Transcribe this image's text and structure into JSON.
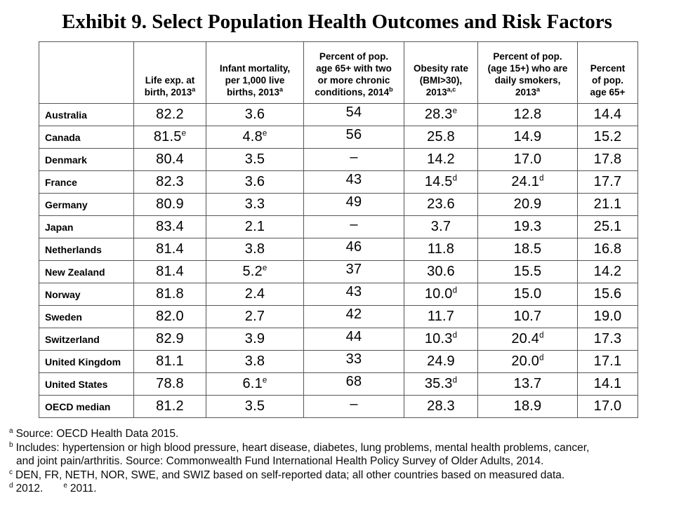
{
  "title": "Exhibit 9. Select Population Health Outcomes and Risk Factors",
  "table": {
    "columns": [
      {
        "lines": [],
        "sup": ""
      },
      {
        "lines": [
          "Life exp. at",
          "birth, 2013"
        ],
        "sup": "a"
      },
      {
        "lines": [
          "Infant mortality,",
          "per 1,000 live",
          "births, 2013"
        ],
        "sup": "a"
      },
      {
        "lines": [
          "Percent of pop.",
          "age 65+ with two",
          "or more chronic",
          "conditions, 2014"
        ],
        "sup": "b"
      },
      {
        "lines": [
          "Obesity rate",
          "(BMI>30),",
          "2013"
        ],
        "sup": "a,c"
      },
      {
        "lines": [
          "Percent of pop.",
          "(age 15+) who are",
          "daily smokers,",
          "2013"
        ],
        "sup": "a"
      },
      {
        "lines": [
          "Percent",
          "of pop.",
          "age 65+"
        ],
        "sup": ""
      }
    ],
    "rows": [
      {
        "country": "Australia",
        "cells": [
          {
            "v": "82.2",
            "sup": ""
          },
          {
            "v": "3.6",
            "sup": ""
          },
          {
            "v": "54",
            "sup": ""
          },
          {
            "v": "28.3",
            "sup": "e"
          },
          {
            "v": "12.8",
            "sup": ""
          },
          {
            "v": "14.4",
            "sup": ""
          }
        ]
      },
      {
        "country": "Canada",
        "cells": [
          {
            "v": "81.5",
            "sup": "e"
          },
          {
            "v": "4.8",
            "sup": "e"
          },
          {
            "v": "56",
            "sup": ""
          },
          {
            "v": "25.8",
            "sup": ""
          },
          {
            "v": "14.9",
            "sup": ""
          },
          {
            "v": "15.2",
            "sup": ""
          }
        ]
      },
      {
        "country": "Denmark",
        "cells": [
          {
            "v": "80.4",
            "sup": ""
          },
          {
            "v": "3.5",
            "sup": ""
          },
          {
            "v": "–",
            "sup": ""
          },
          {
            "v": "14.2",
            "sup": ""
          },
          {
            "v": "17.0",
            "sup": ""
          },
          {
            "v": "17.8",
            "sup": ""
          }
        ]
      },
      {
        "country": "France",
        "cells": [
          {
            "v": "82.3",
            "sup": ""
          },
          {
            "v": "3.6",
            "sup": ""
          },
          {
            "v": "43",
            "sup": ""
          },
          {
            "v": "14.5",
            "sup": "d"
          },
          {
            "v": "24.1",
            "sup": "d"
          },
          {
            "v": "17.7",
            "sup": ""
          }
        ]
      },
      {
        "country": "Germany",
        "cells": [
          {
            "v": "80.9",
            "sup": ""
          },
          {
            "v": "3.3",
            "sup": ""
          },
          {
            "v": "49",
            "sup": ""
          },
          {
            "v": "23.6",
            "sup": ""
          },
          {
            "v": "20.9",
            "sup": ""
          },
          {
            "v": "21.1",
            "sup": ""
          }
        ]
      },
      {
        "country": "Japan",
        "cells": [
          {
            "v": "83.4",
            "sup": ""
          },
          {
            "v": "2.1",
            "sup": ""
          },
          {
            "v": "–",
            "sup": ""
          },
          {
            "v": "3.7",
            "sup": ""
          },
          {
            "v": "19.3",
            "sup": ""
          },
          {
            "v": "25.1",
            "sup": ""
          }
        ]
      },
      {
        "country": "Netherlands",
        "cells": [
          {
            "v": "81.4",
            "sup": ""
          },
          {
            "v": "3.8",
            "sup": ""
          },
          {
            "v": "46",
            "sup": ""
          },
          {
            "v": "11.8",
            "sup": ""
          },
          {
            "v": "18.5",
            "sup": ""
          },
          {
            "v": "16.8",
            "sup": ""
          }
        ]
      },
      {
        "country": "New Zealand",
        "cells": [
          {
            "v": "81.4",
            "sup": ""
          },
          {
            "v": "5.2",
            "sup": "e"
          },
          {
            "v": "37",
            "sup": ""
          },
          {
            "v": "30.6",
            "sup": ""
          },
          {
            "v": "15.5",
            "sup": ""
          },
          {
            "v": "14.2",
            "sup": ""
          }
        ]
      },
      {
        "country": "Norway",
        "cells": [
          {
            "v": "81.8",
            "sup": ""
          },
          {
            "v": "2.4",
            "sup": ""
          },
          {
            "v": "43",
            "sup": ""
          },
          {
            "v": "10.0",
            "sup": "d"
          },
          {
            "v": "15.0",
            "sup": ""
          },
          {
            "v": "15.6",
            "sup": ""
          }
        ]
      },
      {
        "country": "Sweden",
        "cells": [
          {
            "v": "82.0",
            "sup": ""
          },
          {
            "v": "2.7",
            "sup": ""
          },
          {
            "v": "42",
            "sup": ""
          },
          {
            "v": "11.7",
            "sup": ""
          },
          {
            "v": "10.7",
            "sup": ""
          },
          {
            "v": "19.0",
            "sup": ""
          }
        ]
      },
      {
        "country": "Switzerland",
        "cells": [
          {
            "v": "82.9",
            "sup": ""
          },
          {
            "v": "3.9",
            "sup": ""
          },
          {
            "v": "44",
            "sup": ""
          },
          {
            "v": "10.3",
            "sup": "d"
          },
          {
            "v": "20.4",
            "sup": "d"
          },
          {
            "v": "17.3",
            "sup": ""
          }
        ]
      },
      {
        "country": "United Kingdom",
        "cells": [
          {
            "v": "81.1",
            "sup": ""
          },
          {
            "v": "3.8",
            "sup": ""
          },
          {
            "v": "33",
            "sup": ""
          },
          {
            "v": "24.9",
            "sup": ""
          },
          {
            "v": "20.0",
            "sup": "d"
          },
          {
            "v": "17.1",
            "sup": ""
          }
        ]
      },
      {
        "country": "United States",
        "cells": [
          {
            "v": "78.8",
            "sup": ""
          },
          {
            "v": "6.1",
            "sup": "e"
          },
          {
            "v": "68",
            "sup": ""
          },
          {
            "v": "35.3",
            "sup": "d"
          },
          {
            "v": "13.7",
            "sup": ""
          },
          {
            "v": "14.1",
            "sup": ""
          }
        ]
      },
      {
        "country": "OECD median",
        "cells": [
          {
            "v": "81.2",
            "sup": ""
          },
          {
            "v": "3.5",
            "sup": ""
          },
          {
            "v": "–",
            "sup": ""
          },
          {
            "v": "28.3",
            "sup": ""
          },
          {
            "v": "18.9",
            "sup": ""
          },
          {
            "v": "17.0",
            "sup": ""
          }
        ]
      }
    ]
  },
  "footnotes": [
    {
      "indent": false,
      "segments": [
        {
          "sup": "a",
          "text": "Source: OECD Health Data 2015."
        }
      ]
    },
    {
      "indent": false,
      "segments": [
        {
          "sup": "b",
          "text": "Includes: hypertension or high blood pressure, heart disease, diabetes, lung problems, mental health problems, cancer,"
        }
      ]
    },
    {
      "indent": true,
      "segments": [
        {
          "sup": "",
          "text": "and joint pain/arthritis. Source: Commonwealth Fund International Health Policy Survey of Older Adults, 2014."
        }
      ]
    },
    {
      "indent": false,
      "segments": [
        {
          "sup": "c",
          "text": "DEN, FR, NETH, NOR, SWE, and SWIZ based on self-reported data; all other countries based on measured data."
        }
      ]
    },
    {
      "indent": false,
      "segments": [
        {
          "sup": "d",
          "text": "2012."
        },
        {
          "sup": "e",
          "text": "2011."
        }
      ]
    }
  ],
  "chart_data": {
    "type": "table",
    "title": "Exhibit 9. Select Population Health Outcomes and Risk Factors",
    "columns": [
      "Life exp. at birth, 2013",
      "Infant mortality, per 1,000 live births, 2013",
      "Percent of pop. age 65+ with two or more chronic conditions, 2014",
      "Obesity rate (BMI>30), 2013",
      "Percent of pop. (age 15+) who are daily smokers, 2013",
      "Percent of pop. age 65+"
    ],
    "rows": [
      "Australia",
      "Canada",
      "Denmark",
      "France",
      "Germany",
      "Japan",
      "Netherlands",
      "New Zealand",
      "Norway",
      "Sweden",
      "Switzerland",
      "United Kingdom",
      "United States",
      "OECD median"
    ],
    "values": [
      [
        82.2,
        3.6,
        54,
        28.3,
        12.8,
        14.4
      ],
      [
        81.5,
        4.8,
        56,
        25.8,
        14.9,
        15.2
      ],
      [
        80.4,
        3.5,
        null,
        14.2,
        17.0,
        17.8
      ],
      [
        82.3,
        3.6,
        43,
        14.5,
        24.1,
        17.7
      ],
      [
        80.9,
        3.3,
        49,
        23.6,
        20.9,
        21.1
      ],
      [
        83.4,
        2.1,
        null,
        3.7,
        19.3,
        25.1
      ],
      [
        81.4,
        3.8,
        46,
        11.8,
        18.5,
        16.8
      ],
      [
        81.4,
        5.2,
        37,
        30.6,
        15.5,
        14.2
      ],
      [
        81.8,
        2.4,
        43,
        10.0,
        15.0,
        15.6
      ],
      [
        82.0,
        2.7,
        42,
        11.7,
        10.7,
        19.0
      ],
      [
        82.9,
        3.9,
        44,
        10.3,
        20.4,
        17.3
      ],
      [
        81.1,
        3.8,
        33,
        24.9,
        20.0,
        17.1
      ],
      [
        78.8,
        6.1,
        68,
        35.3,
        13.7,
        14.1
      ],
      [
        81.2,
        3.5,
        null,
        28.3,
        18.9,
        17.0
      ]
    ],
    "notes": "sup e = 2011 data; sup d = 2012 data; en-dash = not available"
  }
}
